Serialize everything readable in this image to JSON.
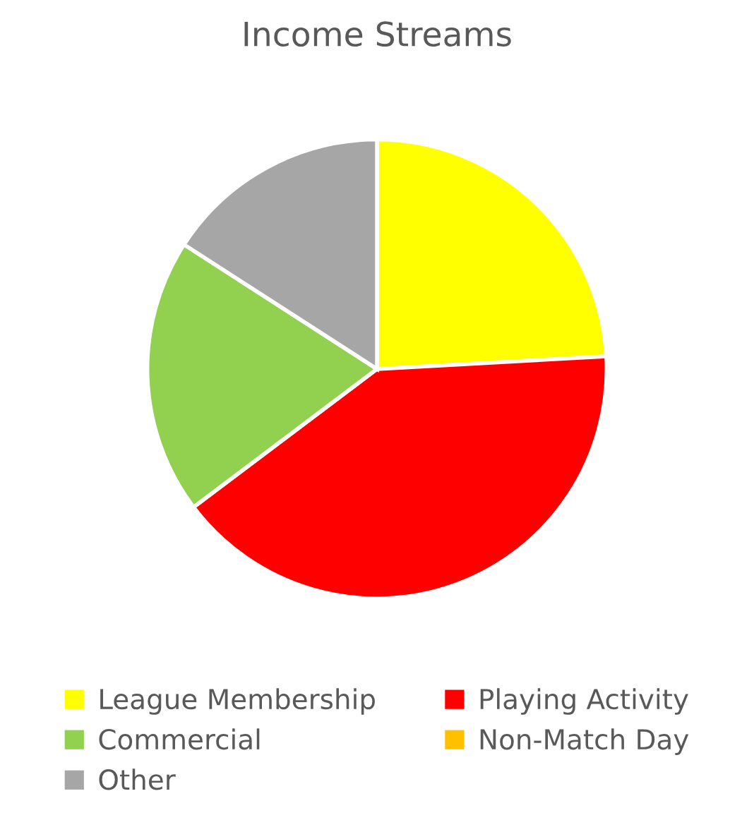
{
  "chart_data": {
    "type": "pie",
    "title": "Income Streams",
    "categories": [
      "League Membership",
      "Playing Activity",
      "Commercial",
      "Non-Match Day",
      "Other"
    ],
    "values": [
      24.0,
      40.4,
      19.3,
      null,
      15.8
    ],
    "colors": [
      "#ffff00",
      "#ff0000",
      "#92d050",
      "#ffc000",
      "#a6a6a6"
    ],
    "legend": "bottom"
  }
}
